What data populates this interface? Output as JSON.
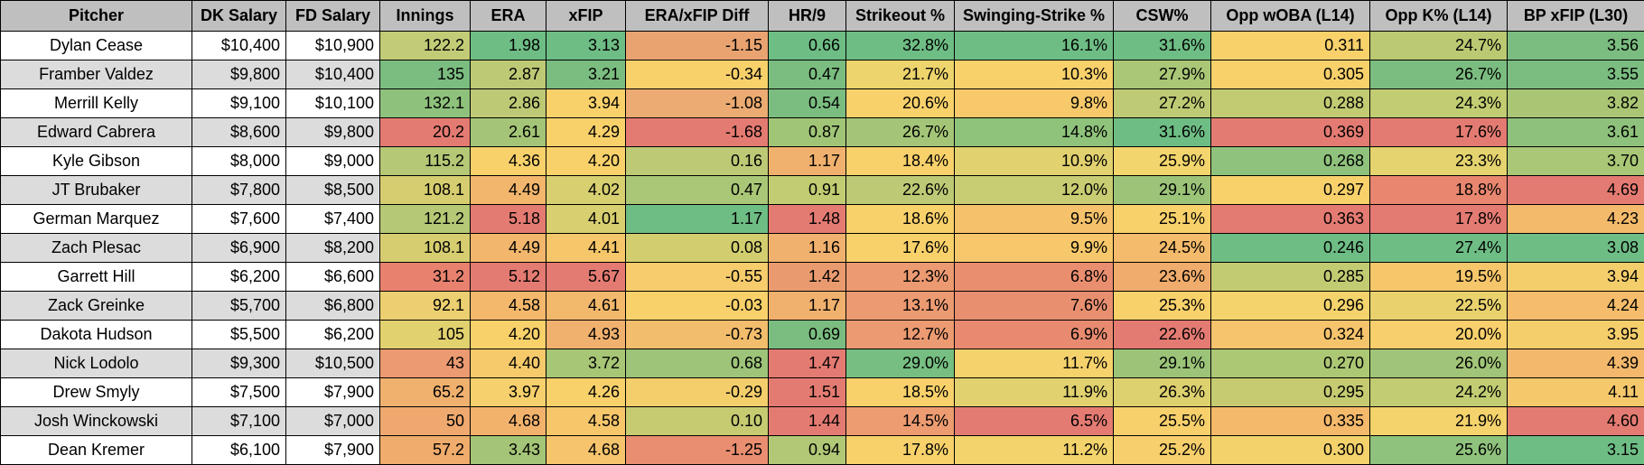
{
  "table": {
    "headers": [
      "Pitcher",
      "DK Salary",
      "FD Salary",
      "Innings",
      "ERA",
      "xFIP",
      "ERA/xFIP Diff",
      "HR/9",
      "Strikeout %",
      "Swinging-Strike %",
      "CSW%",
      "Opp wOBA (L14)",
      "Opp K% (L14)",
      "BP xFIP (L30)"
    ],
    "rows": [
      [
        "Dylan Cease",
        "$10,400",
        "$10,900",
        "122.2",
        "1.98",
        "3.13",
        "-1.15",
        "0.66",
        "32.8%",
        "16.1%",
        "31.6%",
        "0.311",
        "24.7%",
        "3.56"
      ],
      [
        "Framber Valdez",
        "$9,800",
        "$10,400",
        "135",
        "2.87",
        "3.21",
        "-0.34",
        "0.47",
        "21.7%",
        "10.3%",
        "27.9%",
        "0.305",
        "26.7%",
        "3.55"
      ],
      [
        "Merrill Kelly",
        "$9,100",
        "$10,100",
        "132.1",
        "2.86",
        "3.94",
        "-1.08",
        "0.54",
        "20.6%",
        "9.8%",
        "27.2%",
        "0.288",
        "24.3%",
        "3.82"
      ],
      [
        "Edward Cabrera",
        "$8,600",
        "$9,800",
        "20.2",
        "2.61",
        "4.29",
        "-1.68",
        "0.87",
        "26.7%",
        "14.8%",
        "31.6%",
        "0.369",
        "17.6%",
        "3.61"
      ],
      [
        "Kyle Gibson",
        "$8,000",
        "$9,000",
        "115.2",
        "4.36",
        "4.20",
        "0.16",
        "1.17",
        "18.4%",
        "10.9%",
        "25.9%",
        "0.268",
        "23.3%",
        "3.70"
      ],
      [
        "JT Brubaker",
        "$7,800",
        "$8,500",
        "108.1",
        "4.49",
        "4.02",
        "0.47",
        "0.91",
        "22.6%",
        "12.0%",
        "29.1%",
        "0.297",
        "18.8%",
        "4.69"
      ],
      [
        "German Marquez",
        "$7,600",
        "$7,400",
        "121.2",
        "5.18",
        "4.01",
        "1.17",
        "1.48",
        "18.6%",
        "9.5%",
        "25.1%",
        "0.363",
        "17.8%",
        "4.23"
      ],
      [
        "Zach Plesac",
        "$6,900",
        "$8,200",
        "108.1",
        "4.49",
        "4.41",
        "0.08",
        "1.16",
        "17.6%",
        "9.9%",
        "24.5%",
        "0.246",
        "27.4%",
        "3.08"
      ],
      [
        "Garrett Hill",
        "$6,200",
        "$6,600",
        "31.2",
        "5.12",
        "5.67",
        "-0.55",
        "1.42",
        "12.3%",
        "6.8%",
        "23.6%",
        "0.285",
        "19.5%",
        "3.94"
      ],
      [
        "Zack Greinke",
        "$5,700",
        "$6,800",
        "92.1",
        "4.58",
        "4.61",
        "-0.03",
        "1.17",
        "13.1%",
        "7.6%",
        "25.3%",
        "0.296",
        "22.5%",
        "4.24"
      ],
      [
        "Dakota Hudson",
        "$5,500",
        "$6,200",
        "105",
        "4.20",
        "4.93",
        "-0.73",
        "0.69",
        "12.7%",
        "6.9%",
        "22.6%",
        "0.324",
        "20.0%",
        "3.95"
      ],
      [
        "Nick Lodolo",
        "$9,300",
        "$10,500",
        "43",
        "4.40",
        "3.72",
        "0.68",
        "1.47",
        "29.0%",
        "11.7%",
        "29.1%",
        "0.270",
        "26.0%",
        "4.39"
      ],
      [
        "Drew Smyly",
        "$7,500",
        "$7,900",
        "65.2",
        "3.97",
        "4.26",
        "-0.29",
        "1.51",
        "18.5%",
        "11.9%",
        "26.3%",
        "0.295",
        "24.2%",
        "4.11"
      ],
      [
        "Josh Winckowski",
        "$7,100",
        "$7,000",
        "50",
        "4.68",
        "4.58",
        "0.10",
        "1.44",
        "14.5%",
        "6.5%",
        "25.5%",
        "0.335",
        "21.9%",
        "4.60"
      ],
      [
        "Dean Kremer",
        "$6,100",
        "$7,900",
        "57.2",
        "3.43",
        "4.68",
        "-1.25",
        "0.94",
        "17.8%",
        "11.2%",
        "25.2%",
        "0.300",
        "25.6%",
        "3.15"
      ]
    ],
    "cell_colors": [
      [
        "",
        "",
        "",
        "#c2cc77",
        "#6ebd85",
        "#6ebd85",
        "#e9a371",
        "#6ebd85",
        "#6ebd85",
        "#6ebd85",
        "#6ebd85",
        "#f8d16b",
        "#bbc972",
        "#7bbd80"
      ],
      [
        "",
        "",
        "",
        "#7bbd80",
        "#bec975",
        "#7bbd80",
        "#f8d16b",
        "#7bbd80",
        "#edd46c",
        "#f8d16b",
        "#a9c776",
        "#f8d16b",
        "#7bbd80",
        "#7bbd80"
      ],
      [
        "",
        "",
        "",
        "#8ec27c",
        "#bec975",
        "#f8d16b",
        "#ecab72",
        "#7bbd80",
        "#f8d16b",
        "#f7c96a",
        "#bfca74",
        "#c2cb72",
        "#c2cc72",
        "#aac674"
      ],
      [
        "",
        "",
        "",
        "#e47b72",
        "#a4c577",
        "#f8d16b",
        "#e47b72",
        "#a0c577",
        "#a4c577",
        "#8fc27b",
        "#6ebd85",
        "#e47b72",
        "#e47b72",
        "#8ec27c"
      ],
      [
        "",
        "",
        "",
        "#b5c875",
        "#f8d16b",
        "#f8d16b",
        "#bec975",
        "#f0b16e",
        "#f8d16b",
        "#e1d16f",
        "#f2d56c",
        "#8fc27c",
        "#e4d36e",
        "#a9c776"
      ],
      [
        "",
        "",
        "",
        "#d6cd70",
        "#f2b66c",
        "#d7cf70",
        "#a9c776",
        "#c2cc72",
        "#bec975",
        "#c8cc72",
        "#9bc479",
        "#f8d16b",
        "#e8866f",
        "#e47b72"
      ],
      [
        "",
        "",
        "",
        "#b4c875",
        "#e47b72",
        "#d7cf70",
        "#6ebd85",
        "#e47b72",
        "#f8d16b",
        "#f5c26b",
        "#f8d16b",
        "#e47b72",
        "#e47b72",
        "#f4ba6b"
      ],
      [
        "",
        "",
        "",
        "#d6cd70",
        "#f2b66c",
        "#f5c66a",
        "#d2ce70",
        "#f0b16e",
        "#f8d16b",
        "#f6c86b",
        "#f3bb6b",
        "#6ebd85",
        "#6ebd85",
        "#6ebd85"
      ],
      [
        "",
        "",
        "",
        "#e8826f",
        "#e47b72",
        "#e47b72",
        "#f6cc6c",
        "#e99b6f",
        "#ec9a71",
        "#ea8e70",
        "#f0ac6c",
        "#c2cb72",
        "#f6c66b",
        "#f5ce6c"
      ],
      [
        "",
        "",
        "",
        "#eccf70",
        "#f3b86c",
        "#f2b86c",
        "#f8d16b",
        "#f0b16e",
        "#ec9a71",
        "#e88f70",
        "#f8d16b",
        "#f4d36c",
        "#e9d26e",
        "#f4bc6b"
      ],
      [
        "",
        "",
        "",
        "#e2d16f",
        "#f8d16b",
        "#f0b16e",
        "#f2bd6c",
        "#7bbd80",
        "#ec9a71",
        "#e88a70",
        "#e47b72",
        "#f5c46c",
        "#f7cf6c",
        "#f5ce6c"
      ],
      [
        "",
        "",
        "",
        "#ec9a71",
        "#f6ca6b",
        "#a7c676",
        "#9dc479",
        "#e47b72",
        "#76be81",
        "#f5d26c",
        "#9bc479",
        "#acc875",
        "#a1c578",
        "#f3b86c"
      ],
      [
        "",
        "",
        "",
        "#f0b16e",
        "#f6d06c",
        "#f8d16b",
        "#f5ce6c",
        "#e47b72",
        "#f8d16b",
        "#e1d16f",
        "#ddd06f",
        "#c6cb72",
        "#c2cc72",
        "#f5c86b"
      ],
      [
        "",
        "",
        "",
        "#efa96e",
        "#f2b26c",
        "#f6c66b",
        "#c6cb72",
        "#e47b72",
        "#ed9c71",
        "#e47b72",
        "#f7d06c",
        "#f4b96b",
        "#f4d26c",
        "#e47b72"
      ],
      [
        "",
        "",
        "",
        "#f0ac6c",
        "#a4c577",
        "#f5c46c",
        "#e98e70",
        "#b1c876",
        "#f8d16b",
        "#f3d46c",
        "#f7cf6c",
        "#f3d26c",
        "#8fc27c",
        "#6ebd85"
      ]
    ]
  }
}
